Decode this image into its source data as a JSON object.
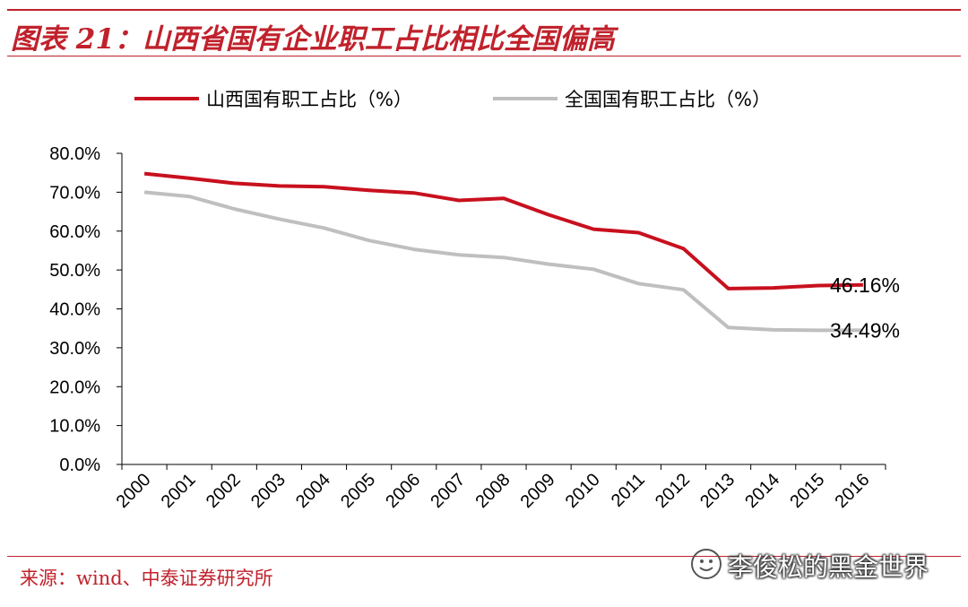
{
  "header": {
    "title": "图表 21：山西省国有企业职工占比相比全国偏高"
  },
  "footer": {
    "source": "来源：wind、中泰证券研究所"
  },
  "watermark": {
    "text": "李俊松的黑金世界"
  },
  "colors": {
    "accent": "#c0222c",
    "series_shanxi": "#c8101e",
    "series_national": "#bfbfbf"
  },
  "chart_data": {
    "type": "line",
    "x": [
      "2000",
      "2001",
      "2002",
      "2003",
      "2004",
      "2005",
      "2006",
      "2007",
      "2008",
      "2009",
      "2010",
      "2011",
      "2012",
      "2013",
      "2014",
      "2015",
      "2016"
    ],
    "series": [
      {
        "name": "山西国有职工占比（%）",
        "color": "#c8101e",
        "values": [
          74.8,
          73.6,
          72.3,
          71.6,
          71.4,
          70.5,
          69.8,
          67.9,
          68.4,
          64.2,
          60.5,
          59.6,
          55.5,
          45.2,
          45.4,
          46.0,
          46.16
        ],
        "end_label": "46.16%"
      },
      {
        "name": "全国国有职工占比（%）",
        "color": "#bfbfbf",
        "values": [
          70.0,
          68.9,
          65.7,
          63.1,
          60.8,
          57.6,
          55.3,
          53.9,
          53.2,
          51.5,
          50.2,
          46.5,
          44.9,
          35.2,
          34.6,
          34.5,
          34.49
        ],
        "end_label": "34.49%"
      }
    ],
    "y_ticks": [
      "0.0%",
      "10.0%",
      "20.0%",
      "30.0%",
      "40.0%",
      "50.0%",
      "60.0%",
      "70.0%",
      "80.0%"
    ],
    "ylim": [
      0,
      80
    ],
    "grid": false,
    "legend_position": "top"
  }
}
